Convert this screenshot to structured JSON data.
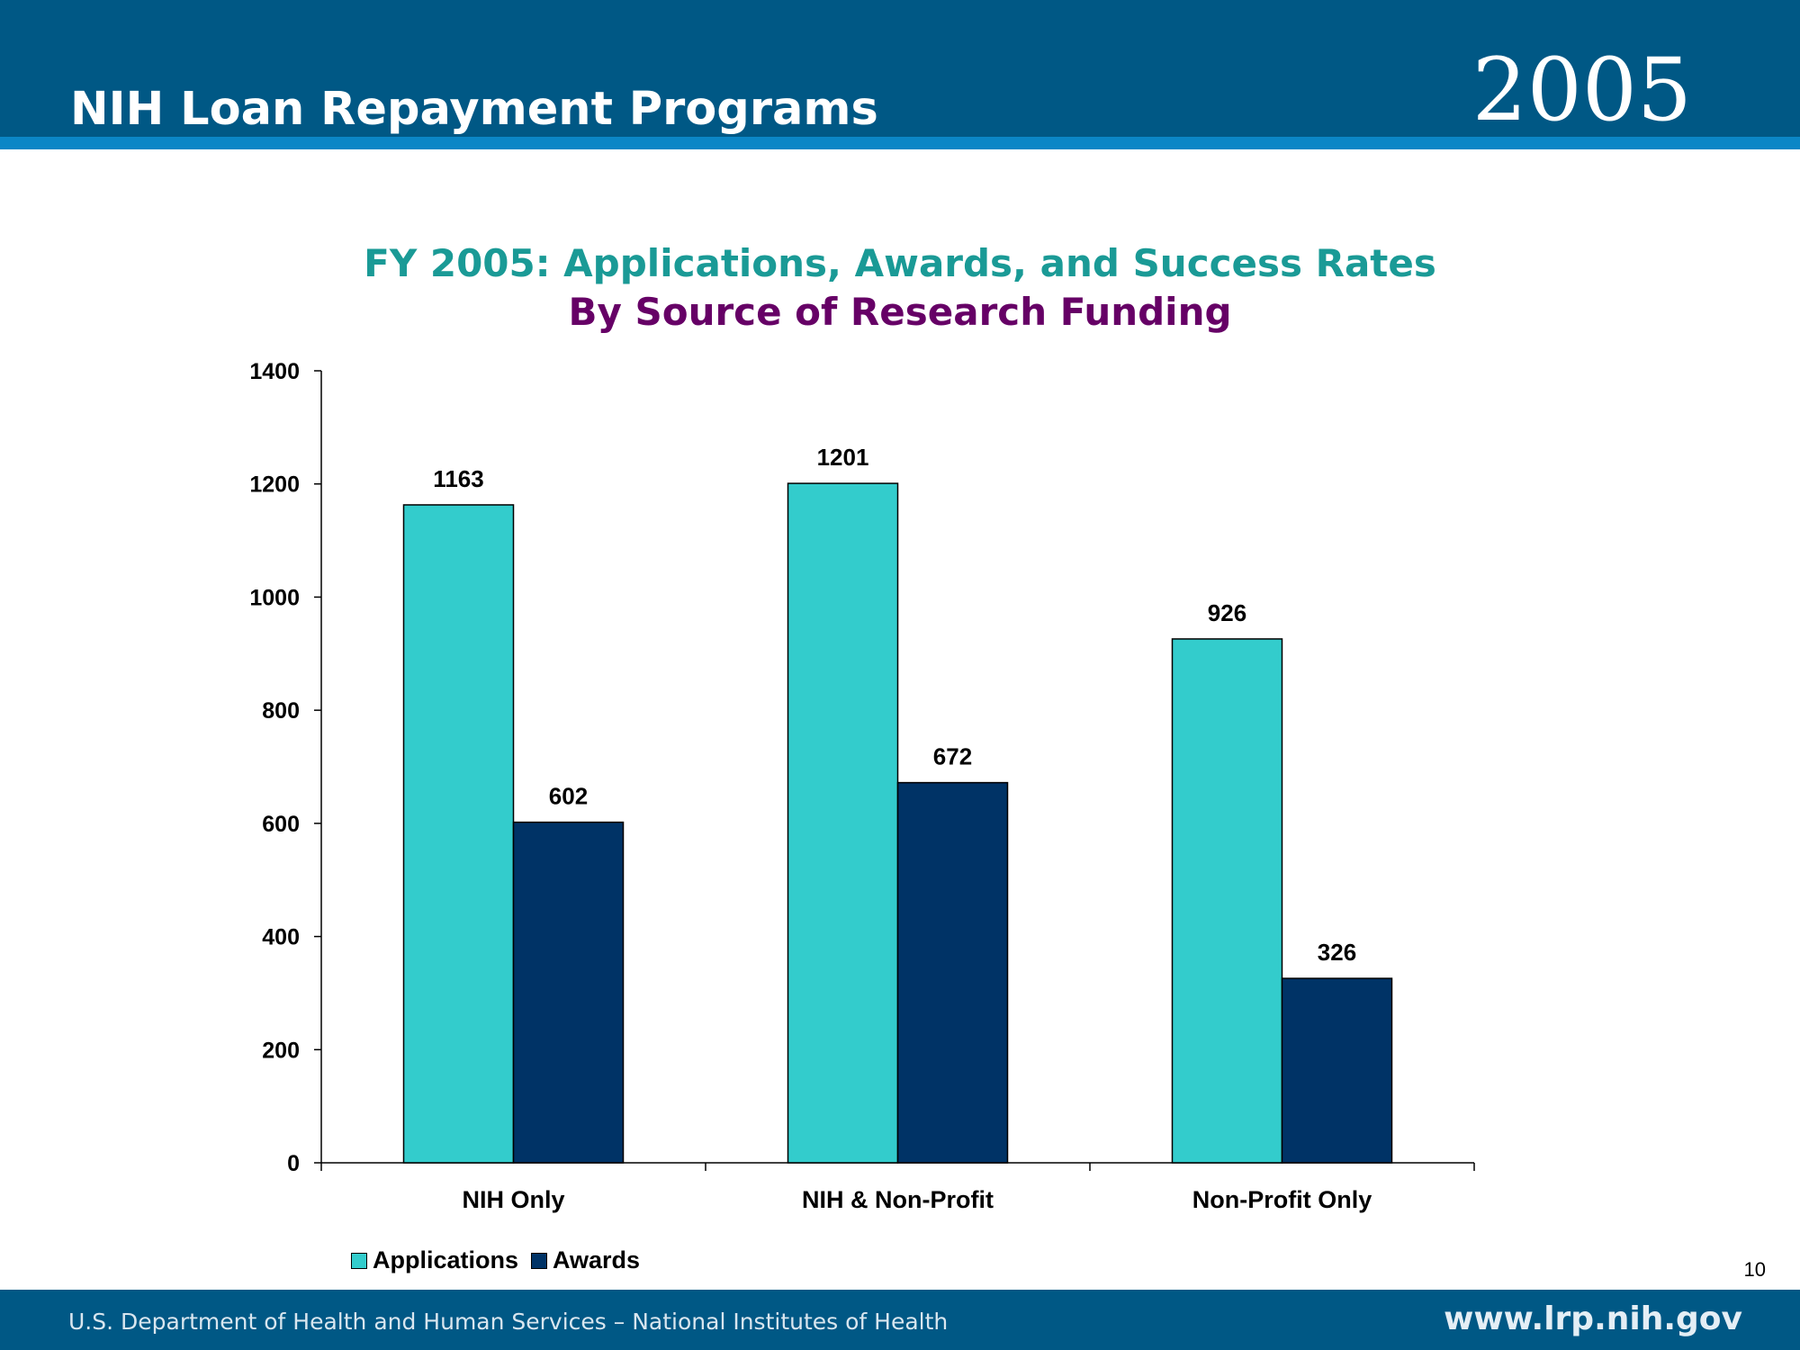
{
  "header": {
    "title": "NIH Loan Repayment Programs",
    "year": "2005"
  },
  "chart_data": {
    "type": "bar",
    "title": "FY 2005:  Applications, Awards, and Success Rates",
    "subtitle": "By Source of Research Funding",
    "categories": [
      "NIH Only",
      "NIH & Non-Profit",
      "Non-Profit Only"
    ],
    "series": [
      {
        "name": "Applications",
        "values": [
          1163,
          1201,
          926
        ],
        "color": "#33cccc"
      },
      {
        "name": "Awards",
        "values": [
          602,
          672,
          326
        ],
        "color": "#003366"
      }
    ],
    "xlabel": "",
    "ylabel": "",
    "ylim": [
      0,
      1400
    ],
    "yticks": [
      0,
      200,
      400,
      600,
      800,
      1000,
      1200,
      1400
    ],
    "grid": false,
    "legend": "bottom-left",
    "data_labels": true
  },
  "page_number": "10",
  "footer": {
    "left": "U.S. Department of Health and Human Services – National Institutes of Health",
    "right": "www.lrp.nih.gov"
  },
  "colors": {
    "header_bg": "#005885",
    "header_stripe": "#0b86c6",
    "title_teal": "#1a9a96",
    "title_purple": "#660066"
  }
}
